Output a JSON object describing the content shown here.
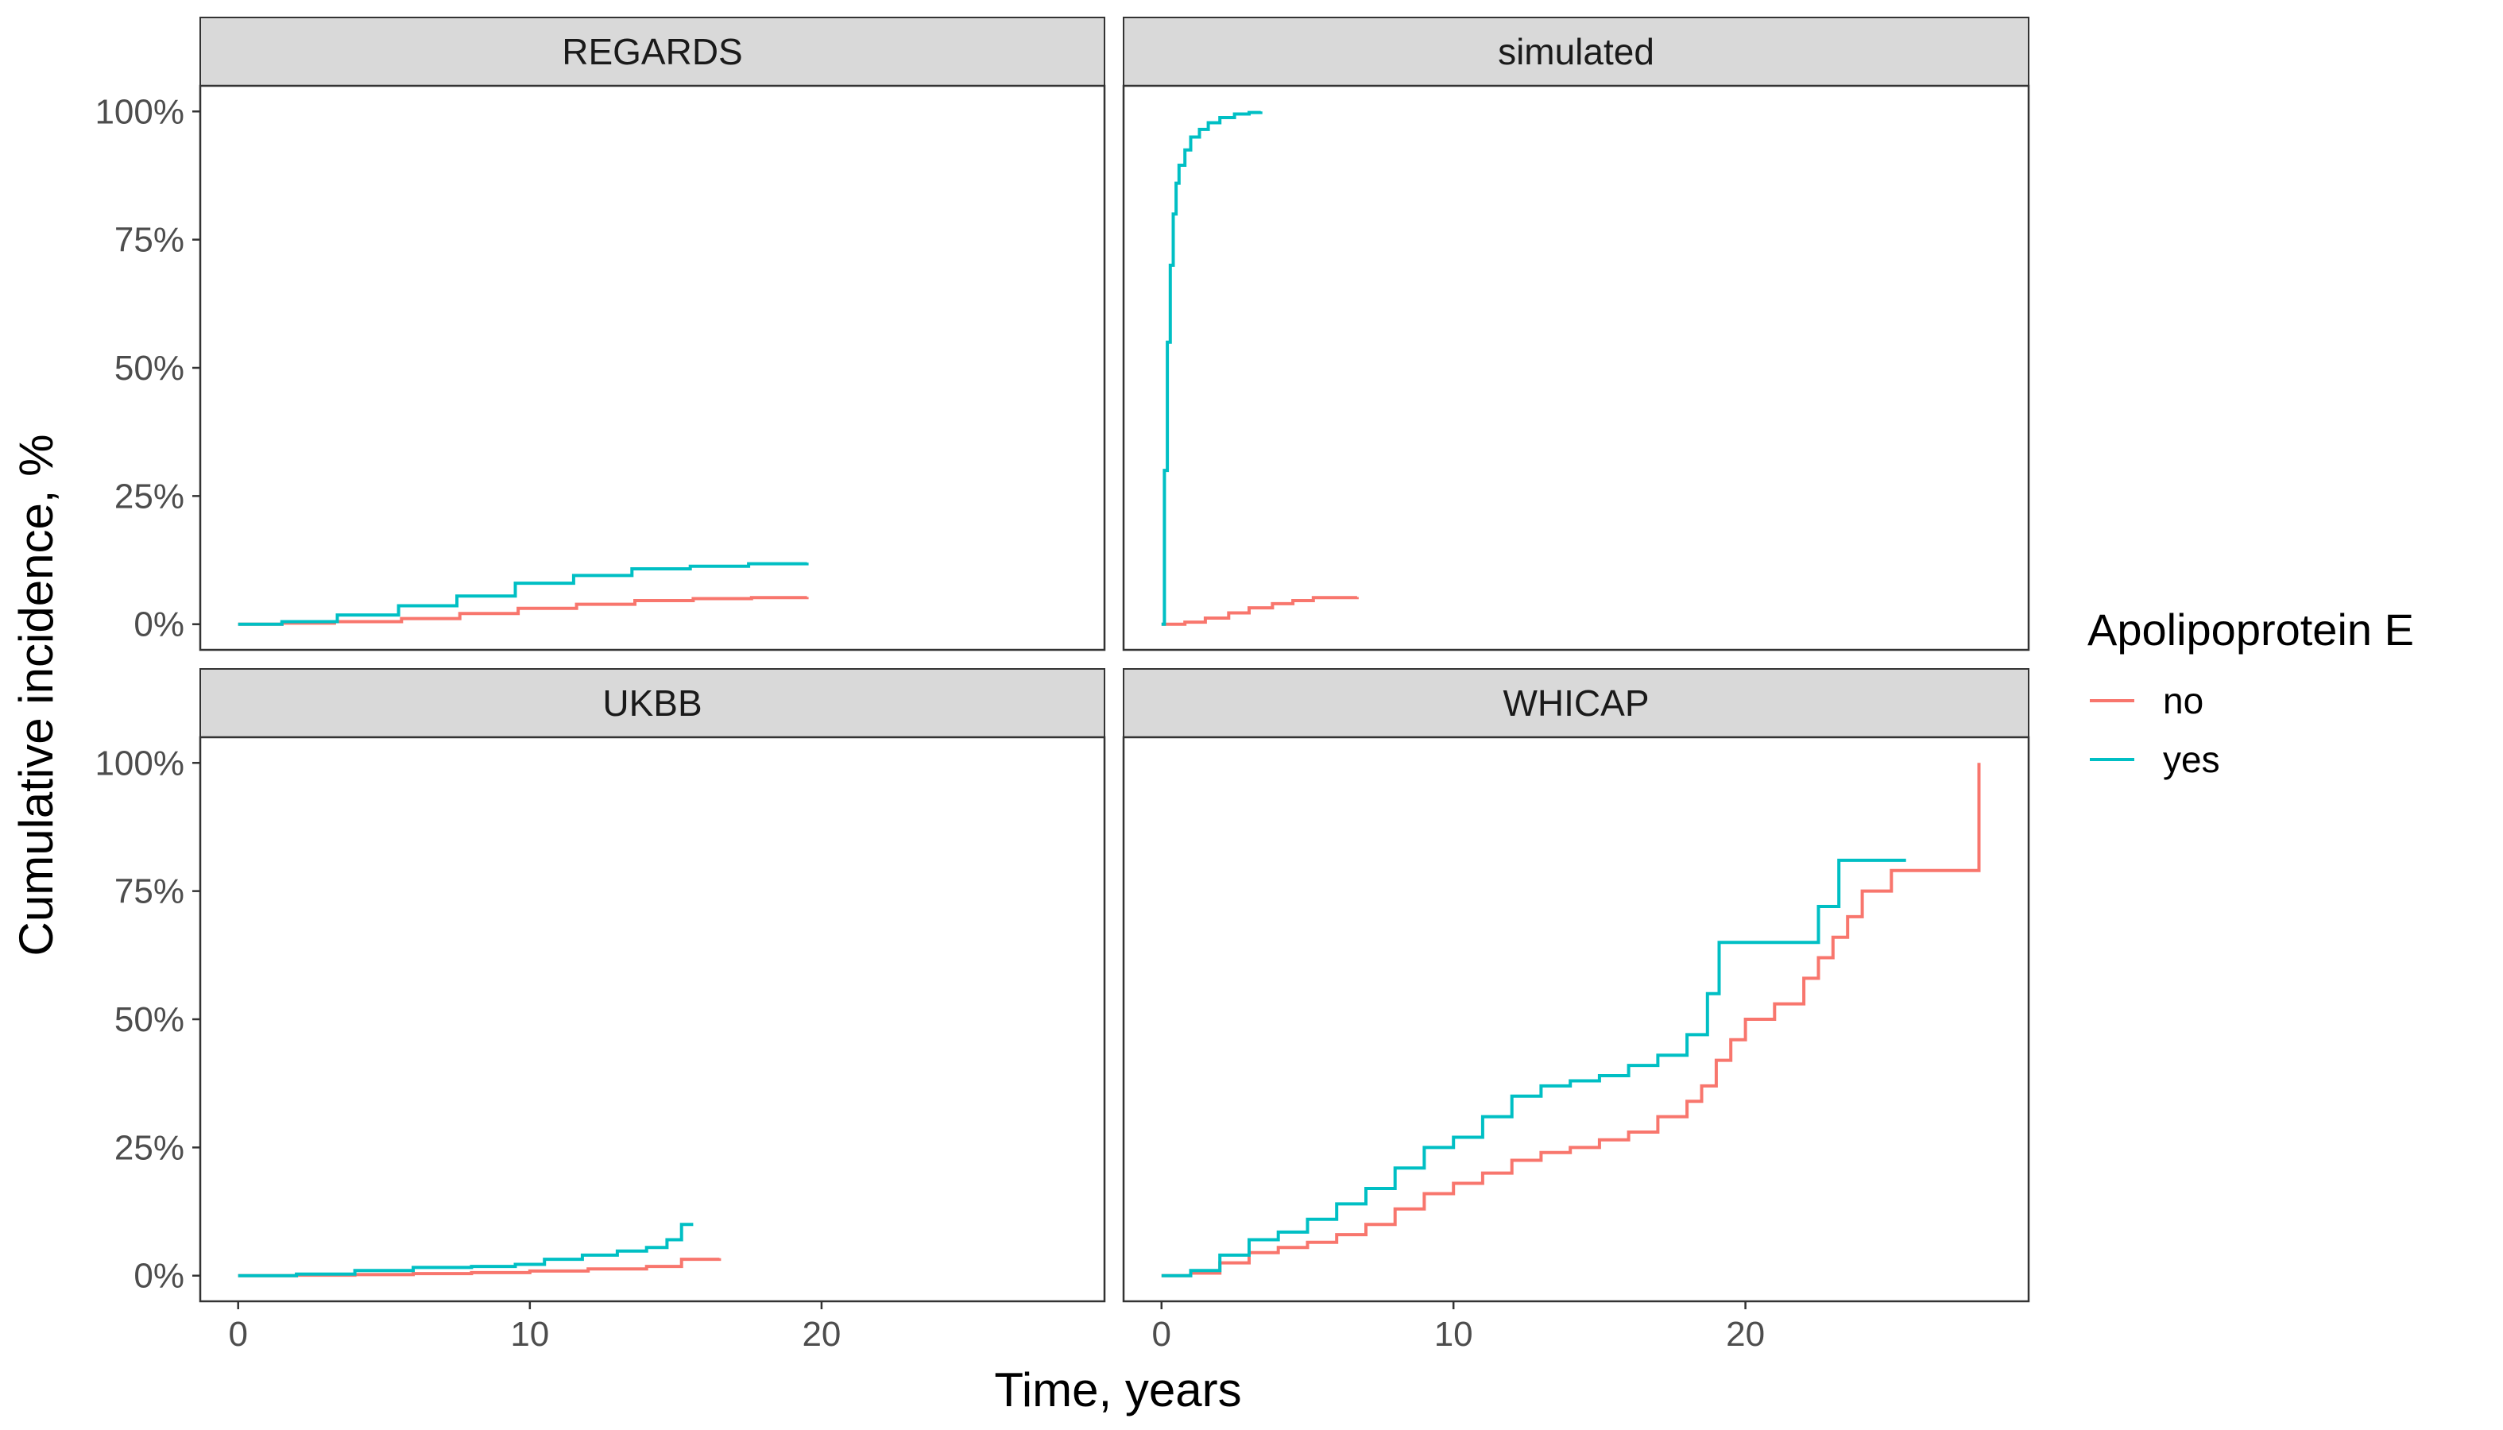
{
  "chart_data": {
    "type": "line",
    "step": true,
    "facets": [
      "REGARDS",
      "simulated",
      "UKBB",
      "WHICAP"
    ],
    "xlabel": "Time, years",
    "ylabel": "Cumulative incidence, %",
    "xlim": [
      -1.3,
      29.7
    ],
    "ylim": [
      -0.05,
      1.05
    ],
    "xticks": [
      0,
      10,
      20
    ],
    "xtick_labels": [
      "0",
      "10",
      "20"
    ],
    "yticks": [
      0,
      0.25,
      0.5,
      0.75,
      1.0
    ],
    "ytick_labels": [
      "0%",
      "25%",
      "50%",
      "75%",
      "100%"
    ],
    "grid": false,
    "legend": {
      "title": "Apolipoprotein E",
      "position": "right",
      "items": [
        {
          "label": "no",
          "color": "#F8766D"
        },
        {
          "label": "yes",
          "color": "#00BFC4"
        }
      ]
    },
    "panels": [
      {
        "name": "REGARDS",
        "series": [
          {
            "group": "no",
            "color": "#F8766D",
            "x": [
              0,
              1.5,
              3.3,
              5.6,
              7.6,
              9.6,
              11.6,
              13.6,
              15.6,
              17.6,
              19.5
            ],
            "y": [
              0,
              0.002,
              0.005,
              0.011,
              0.021,
              0.031,
              0.039,
              0.046,
              0.05,
              0.052,
              0.053
            ]
          },
          {
            "group": "yes",
            "color": "#00BFC4",
            "x": [
              0,
              1.5,
              3.4,
              5.5,
              7.5,
              9.5,
              11.5,
              13.5,
              15.5,
              17.5,
              19.5
            ],
            "y": [
              0,
              0.005,
              0.018,
              0.036,
              0.055,
              0.08,
              0.095,
              0.108,
              0.113,
              0.118,
              0.12
            ]
          }
        ]
      },
      {
        "name": "simulated",
        "series": [
          {
            "group": "no",
            "color": "#F8766D",
            "x": [
              0,
              0.3,
              0.8,
              1.5,
              2.3,
              3.0,
              3.8,
              4.5,
              5.2,
              6.7
            ],
            "y": [
              0,
              0.0,
              0.004,
              0.012,
              0.022,
              0.032,
              0.04,
              0.046,
              0.052,
              0.053
            ]
          },
          {
            "group": "yes",
            "color": "#00BFC4",
            "x": [
              0,
              0.1,
              0.2,
              0.3,
              0.4,
              0.5,
              0.6,
              0.8,
              1.0,
              1.3,
              1.6,
              2.0,
              2.5,
              3.0,
              3.4
            ],
            "y": [
              0,
              0.3,
              0.55,
              0.7,
              0.8,
              0.86,
              0.895,
              0.925,
              0.95,
              0.965,
              0.978,
              0.988,
              0.995,
              0.998,
              1.0
            ]
          }
        ]
      },
      {
        "name": "UKBB",
        "series": [
          {
            "group": "no",
            "color": "#F8766D",
            "x": [
              0,
              2,
              4,
              6,
              8,
              10,
              12,
              14,
              15.2,
              16.5
            ],
            "y": [
              0,
              0.001,
              0.002,
              0.004,
              0.006,
              0.009,
              0.013,
              0.018,
              0.032,
              0.034
            ]
          },
          {
            "group": "yes",
            "color": "#00BFC4",
            "x": [
              0,
              2,
              4,
              6,
              8,
              9.5,
              10.5,
              11.8,
              13,
              14,
              14.7,
              15.2,
              15.6
            ],
            "y": [
              0,
              0.003,
              0.01,
              0.016,
              0.018,
              0.022,
              0.032,
              0.04,
              0.048,
              0.055,
              0.07,
              0.1,
              0.1
            ]
          }
        ]
      },
      {
        "name": "WHICAP",
        "series": [
          {
            "group": "no",
            "color": "#F8766D",
            "x": [
              0,
              1,
              2,
              3,
              4,
              5,
              6,
              7,
              8,
              9,
              10,
              11,
              12,
              13,
              14,
              15,
              16,
              17,
              18,
              18.5,
              19,
              19.5,
              20,
              21,
              22,
              22.5,
              23,
              23.5,
              24,
              25,
              28,
              28
            ],
            "y": [
              0,
              0.005,
              0.025,
              0.045,
              0.055,
              0.065,
              0.08,
              0.1,
              0.13,
              0.16,
              0.18,
              0.2,
              0.225,
              0.24,
              0.25,
              0.265,
              0.28,
              0.31,
              0.34,
              0.37,
              0.42,
              0.46,
              0.5,
              0.53,
              0.58,
              0.62,
              0.66,
              0.7,
              0.75,
              0.79,
              0.79,
              1.0
            ]
          },
          {
            "group": "yes",
            "color": "#00BFC4",
            "x": [
              0,
              1,
              2,
              3,
              4,
              5,
              6,
              7,
              8,
              9,
              10,
              11,
              12,
              13,
              14,
              15,
              16,
              17,
              18,
              18.7,
              19.1,
              20,
              21,
              22.5,
              23.2,
              24,
              25.5
            ],
            "y": [
              0,
              0.01,
              0.04,
              0.07,
              0.085,
              0.11,
              0.14,
              0.17,
              0.21,
              0.25,
              0.27,
              0.31,
              0.35,
              0.37,
              0.38,
              0.39,
              0.41,
              0.43,
              0.47,
              0.55,
              0.65,
              0.65,
              0.65,
              0.72,
              0.81,
              0.81,
              0.81
            ]
          }
        ]
      }
    ]
  }
}
